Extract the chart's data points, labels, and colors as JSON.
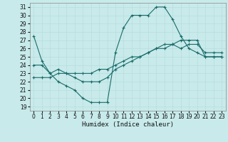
{
  "title": "",
  "xlabel": "Humidex (Indice chaleur)",
  "ylabel": "",
  "background_color": "#c8eaea",
  "line_color": "#1a6b6b",
  "grid_color": "#b8dcdc",
  "xlim": [
    -0.5,
    23.5
  ],
  "ylim": [
    18.5,
    31.5
  ],
  "xticks": [
    0,
    1,
    2,
    3,
    4,
    5,
    6,
    7,
    8,
    9,
    10,
    11,
    12,
    13,
    14,
    15,
    16,
    17,
    18,
    19,
    20,
    21,
    22,
    23
  ],
  "yticks": [
    19,
    20,
    21,
    22,
    23,
    24,
    25,
    26,
    27,
    28,
    29,
    30,
    31
  ],
  "line1_x": [
    0,
    1,
    2,
    3,
    4,
    5,
    6,
    7,
    8,
    9,
    10,
    11,
    12,
    13,
    14,
    15,
    16,
    17,
    18,
    19,
    20,
    21,
    22,
    23
  ],
  "line1_y": [
    27.5,
    24.5,
    23.0,
    22.0,
    21.5,
    21.0,
    20.0,
    19.5,
    19.5,
    19.5,
    25.5,
    28.5,
    30.0,
    30.0,
    30.0,
    31.0,
    31.0,
    29.5,
    27.5,
    26.0,
    25.5,
    25.0,
    25.0,
    25.0
  ],
  "line2_x": [
    0,
    1,
    2,
    3,
    4,
    5,
    6,
    7,
    8,
    9,
    10,
    11,
    12,
    13,
    14,
    15,
    16,
    17,
    18,
    19,
    20,
    21,
    22,
    23
  ],
  "line2_y": [
    24.0,
    24.0,
    23.0,
    23.5,
    23.0,
    22.5,
    22.0,
    22.0,
    22.0,
    22.5,
    23.5,
    24.0,
    24.5,
    25.0,
    25.5,
    26.0,
    26.5,
    26.5,
    26.0,
    26.5,
    26.5,
    25.5,
    25.5,
    25.5
  ],
  "line3_x": [
    0,
    1,
    2,
    3,
    4,
    5,
    6,
    7,
    8,
    9,
    10,
    11,
    12,
    13,
    14,
    15,
    16,
    17,
    18,
    19,
    20,
    21,
    22,
    23
  ],
  "line3_y": [
    22.5,
    22.5,
    22.5,
    23.0,
    23.0,
    23.0,
    23.0,
    23.0,
    23.5,
    23.5,
    24.0,
    24.5,
    25.0,
    25.0,
    25.5,
    26.0,
    26.0,
    26.5,
    27.0,
    27.0,
    27.0,
    25.0,
    25.0,
    25.0
  ],
  "tick_fontsize": 5.5,
  "xlabel_fontsize": 6.5,
  "marker_size": 3,
  "linewidth": 0.8
}
